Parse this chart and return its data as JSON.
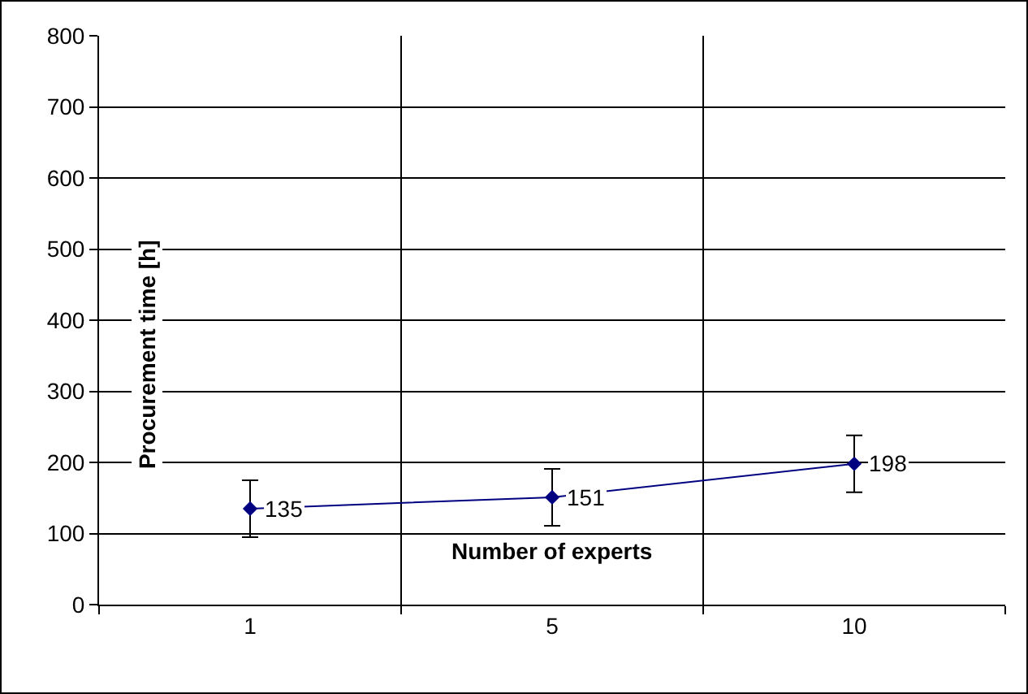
{
  "chart_data": {
    "type": "line",
    "xlabel": "Number of experts",
    "ylabel": "Procurement time [h]",
    "categories": [
      "1",
      "5",
      "10"
    ],
    "series": [
      {
        "color": "#000080",
        "values": [
          135,
          151,
          198
        ],
        "errors": [
          40,
          40,
          40
        ]
      }
    ],
    "ylim": [
      0,
      800
    ],
    "yticks": [
      0,
      100,
      200,
      300,
      400,
      500,
      600,
      700,
      800
    ],
    "grid": true,
    "marker": "diamond",
    "data_labels": true
  }
}
